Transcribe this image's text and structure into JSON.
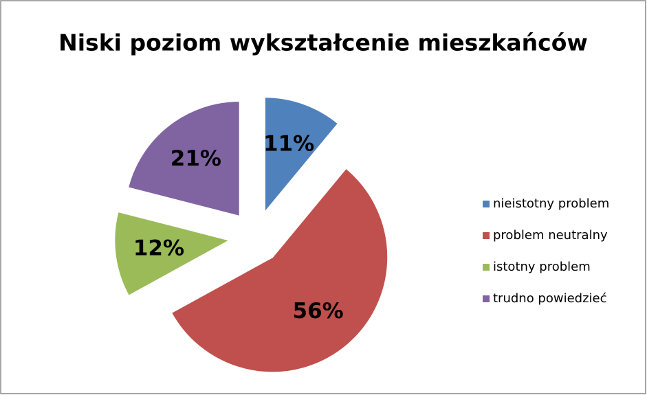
{
  "chart_data": {
    "type": "pie",
    "title": "Niski poziom wykształcenie mieszkańców",
    "categories": [
      "nieistotny problem",
      "problem neutralny",
      "istotny problem",
      "trudno powiedzieć"
    ],
    "values": [
      11,
      56,
      12,
      21
    ],
    "value_labels": [
      "11%",
      "56%",
      "12%",
      "21%"
    ],
    "colors": [
      "#4f81bd",
      "#c0504d",
      "#9bbb59",
      "#8064a2"
    ],
    "exploded": true,
    "legend": "right"
  }
}
